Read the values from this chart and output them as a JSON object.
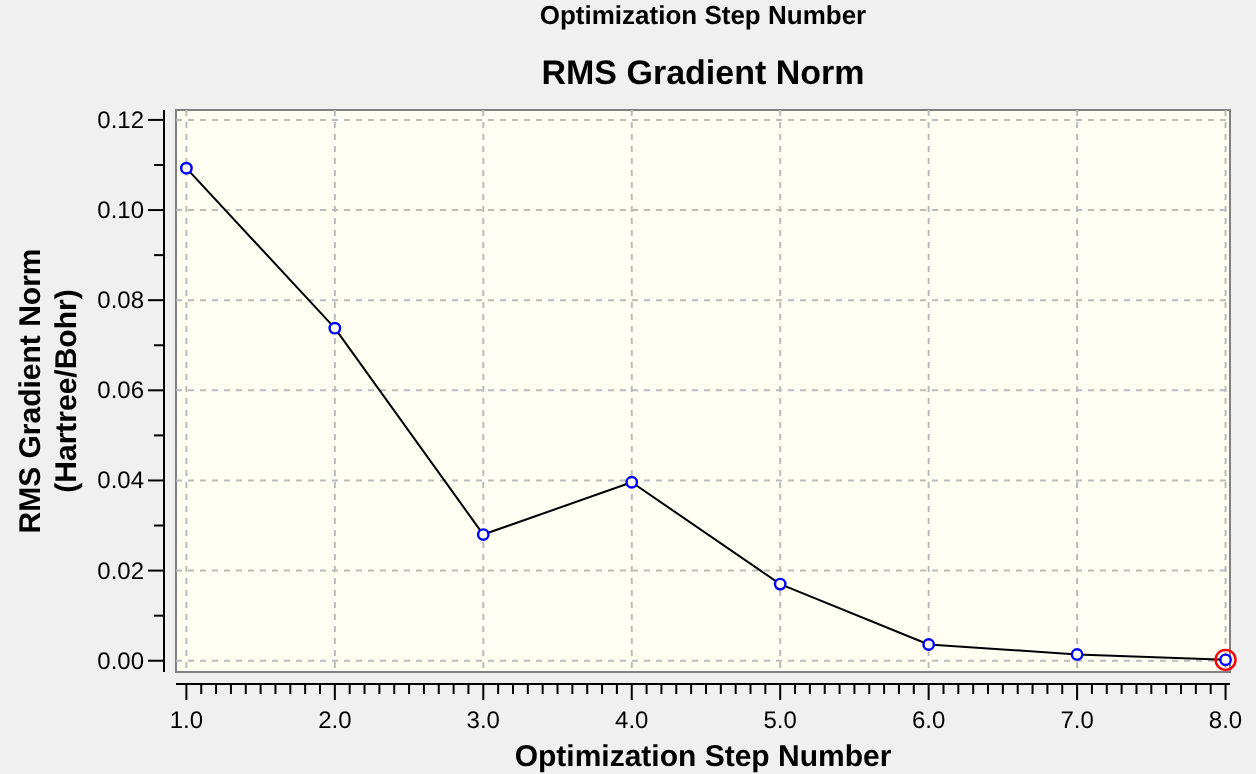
{
  "chart_data": {
    "type": "line",
    "title": "RMS Gradient Norm",
    "annotations": [
      "Optimization Step Number"
    ],
    "xlabel": "Optimization Step Number",
    "ylabel": "RMS Gradient Norm\n(Hartree/Bohr)",
    "x": [
      1,
      2,
      3,
      4,
      5,
      6,
      7,
      8
    ],
    "series": [
      {
        "color": "#000000",
        "values": [
          0.1093,
          0.0738,
          0.028,
          0.0396,
          0.017,
          0.0036,
          0.0014,
          0.0002
        ]
      }
    ],
    "marker": "circle",
    "line_style": "solid",
    "grid": true,
    "xlim": [
      0.93,
      8.03
    ],
    "ylim": [
      -0.0025,
      0.1222
    ],
    "xticks": [
      {
        "value": 1,
        "label": "1.0"
      },
      {
        "value": 1.1,
        "label": null
      },
      {
        "value": 1.2,
        "label": null
      },
      {
        "value": 1.3,
        "label": null
      },
      {
        "value": 1.4,
        "label": null
      },
      {
        "value": 1.5,
        "label": null
      },
      {
        "value": 1.6,
        "label": null
      },
      {
        "value": 1.7,
        "label": null
      },
      {
        "value": 1.8,
        "label": null
      },
      {
        "value": 1.9,
        "label": null
      },
      {
        "value": 2,
        "label": "2.0"
      },
      {
        "value": 2.1,
        "label": null
      },
      {
        "value": 2.2,
        "label": null
      },
      {
        "value": 2.3,
        "label": null
      },
      {
        "value": 2.4,
        "label": null
      },
      {
        "value": 2.5,
        "label": null
      },
      {
        "value": 2.6,
        "label": null
      },
      {
        "value": 2.7,
        "label": null
      },
      {
        "value": 2.8,
        "label": null
      },
      {
        "value": 2.9,
        "label": null
      },
      {
        "value": 3,
        "label": "3.0"
      },
      {
        "value": 3.1,
        "label": null
      },
      {
        "value": 3.2,
        "label": null
      },
      {
        "value": 3.3,
        "label": null
      },
      {
        "value": 3.4,
        "label": null
      },
      {
        "value": 3.5,
        "label": null
      },
      {
        "value": 3.6,
        "label": null
      },
      {
        "value": 3.7,
        "label": null
      },
      {
        "value": 3.8,
        "label": null
      },
      {
        "value": 3.9,
        "label": null
      },
      {
        "value": 4,
        "label": "4.0"
      },
      {
        "value": 4.1,
        "label": null
      },
      {
        "value": 4.2,
        "label": null
      },
      {
        "value": 4.3,
        "label": null
      },
      {
        "value": 4.4,
        "label": null
      },
      {
        "value": 4.5,
        "label": null
      },
      {
        "value": 4.6,
        "label": null
      },
      {
        "value": 4.7,
        "label": null
      },
      {
        "value": 4.8,
        "label": null
      },
      {
        "value": 4.9,
        "label": null
      },
      {
        "value": 5,
        "label": "5.0"
      },
      {
        "value": 5.1,
        "label": null
      },
      {
        "value": 5.2,
        "label": null
      },
      {
        "value": 5.3,
        "label": null
      },
      {
        "value": 5.4,
        "label": null
      },
      {
        "value": 5.5,
        "label": null
      },
      {
        "value": 5.6,
        "label": null
      },
      {
        "value": 5.7,
        "label": null
      },
      {
        "value": 5.8,
        "label": null
      },
      {
        "value": 5.9,
        "label": null
      },
      {
        "value": 6,
        "label": "6.0"
      },
      {
        "value": 6.1,
        "label": null
      },
      {
        "value": 6.2,
        "label": null
      },
      {
        "value": 6.3,
        "label": null
      },
      {
        "value": 6.4,
        "label": null
      },
      {
        "value": 6.5,
        "label": null
      },
      {
        "value": 6.6,
        "label": null
      },
      {
        "value": 6.7,
        "label": null
      },
      {
        "value": 6.8,
        "label": null
      },
      {
        "value": 6.9,
        "label": null
      },
      {
        "value": 7,
        "label": "7.0"
      },
      {
        "value": 7.1,
        "label": null
      },
      {
        "value": 7.2,
        "label": null
      },
      {
        "value": 7.3,
        "label": null
      },
      {
        "value": 7.4,
        "label": null
      },
      {
        "value": 7.5,
        "label": null
      },
      {
        "value": 7.6,
        "label": null
      },
      {
        "value": 7.7,
        "label": null
      },
      {
        "value": 7.8,
        "label": null
      },
      {
        "value": 7.9,
        "label": null
      },
      {
        "value": 8,
        "label": "8.0"
      }
    ],
    "yticks": [
      {
        "value": 0,
        "label": "0.00"
      },
      {
        "value": 0.01,
        "label": null
      },
      {
        "value": 0.02,
        "label": "0.02"
      },
      {
        "value": 0.03,
        "label": null
      },
      {
        "value": 0.04,
        "label": "0.04"
      },
      {
        "value": 0.05,
        "label": null
      },
      {
        "value": 0.06,
        "label": "0.06"
      },
      {
        "value": 0.07,
        "label": null
      },
      {
        "value": 0.08,
        "label": "0.08"
      },
      {
        "value": 0.09,
        "label": null
      },
      {
        "value": 0.1,
        "label": "0.10"
      },
      {
        "value": 0.11,
        "label": null
      },
      {
        "value": 0.12,
        "label": "0.12"
      }
    ]
  }
}
